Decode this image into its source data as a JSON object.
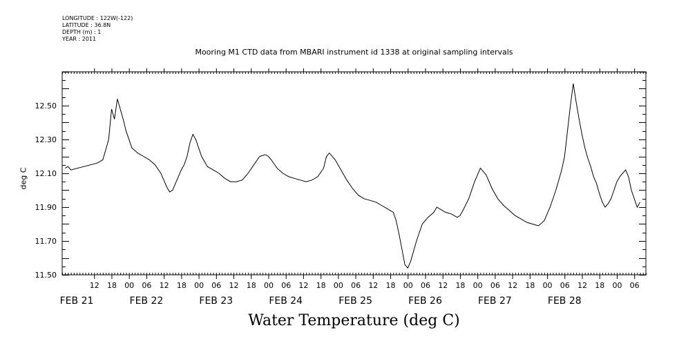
{
  "header": {
    "longitude": "LONGITUDE : 122W(-122)",
    "latitude": "LATITUDE : 36.8N",
    "depth": "DEPTH (m) : 1",
    "year": "YEAR : 2011"
  },
  "chart_data": {
    "type": "line",
    "title": "Mooring M1 CTD data from MBARI instrument id 1338 at original sampling intervals",
    "xlabel": "Water Temperature (deg C)",
    "ylabel": "deg C",
    "ylim": [
      11.5,
      12.7
    ],
    "yticks": [
      11.5,
      11.7,
      11.9,
      12.1,
      12.3,
      12.5
    ],
    "ytick_labels": [
      "11.50",
      "11.70",
      "11.90",
      "12.10",
      "12.30",
      "12.50"
    ],
    "xlim_hours": [
      0,
      201
    ],
    "hour_ticks": [
      {
        "h": 11,
        "label": "12"
      },
      {
        "h": 17,
        "label": "18"
      },
      {
        "h": 23,
        "label": "00"
      },
      {
        "h": 29,
        "label": "06"
      },
      {
        "h": 35,
        "label": "12"
      },
      {
        "h": 41,
        "label": "18"
      },
      {
        "h": 47,
        "label": "00"
      },
      {
        "h": 53,
        "label": "06"
      },
      {
        "h": 59,
        "label": "12"
      },
      {
        "h": 65,
        "label": "18"
      },
      {
        "h": 71,
        "label": "00"
      },
      {
        "h": 77,
        "label": "06"
      },
      {
        "h": 83,
        "label": "12"
      },
      {
        "h": 89,
        "label": "18"
      },
      {
        "h": 95,
        "label": "00"
      },
      {
        "h": 101,
        "label": "06"
      },
      {
        "h": 107,
        "label": "12"
      },
      {
        "h": 113,
        "label": "18"
      },
      {
        "h": 119,
        "label": "00"
      },
      {
        "h": 125,
        "label": "06"
      },
      {
        "h": 131,
        "label": "12"
      },
      {
        "h": 137,
        "label": "18"
      },
      {
        "h": 143,
        "label": "00"
      },
      {
        "h": 149,
        "label": "06"
      },
      {
        "h": 155,
        "label": "12"
      },
      {
        "h": 161,
        "label": "18"
      },
      {
        "h": 167,
        "label": "00"
      },
      {
        "h": 173,
        "label": "06"
      },
      {
        "h": 179,
        "label": "12"
      },
      {
        "h": 185,
        "label": "18"
      },
      {
        "h": 191,
        "label": "00"
      },
      {
        "h": 197,
        "label": "06"
      }
    ],
    "day_labels": [
      {
        "h": 5,
        "label": "FEB 21"
      },
      {
        "h": 29,
        "label": "FEB 22"
      },
      {
        "h": 53,
        "label": "FEB 23"
      },
      {
        "h": 77,
        "label": "FEB 24"
      },
      {
        "h": 101,
        "label": "FEB 25"
      },
      {
        "h": 125,
        "label": "FEB 26"
      },
      {
        "h": 149,
        "label": "FEB 27"
      },
      {
        "h": 173,
        "label": "FEB 28"
      }
    ],
    "x": [
      1,
      2,
      3,
      12,
      14,
      16,
      17,
      18,
      19,
      20,
      21,
      22,
      24,
      26,
      28,
      30,
      32,
      34,
      35,
      36,
      37,
      38,
      39,
      40,
      41,
      42,
      43,
      44,
      45,
      46,
      47,
      48,
      50,
      52,
      54,
      56,
      58,
      60,
      62,
      64,
      66,
      68,
      70,
      71,
      72,
      74,
      76,
      78,
      80,
      82,
      84,
      86,
      88,
      90,
      91,
      92,
      94,
      96,
      98,
      100,
      102,
      104,
      106,
      108,
      110,
      112,
      114,
      115,
      116,
      117,
      118,
      119,
      120,
      122,
      124,
      126,
      128,
      129,
      130,
      132,
      134,
      136,
      137,
      138,
      140,
      142,
      144,
      146,
      148,
      150,
      152,
      154,
      156,
      158,
      160,
      162,
      164,
      166,
      168,
      170,
      172,
      173,
      174,
      175,
      176,
      177,
      178,
      179,
      180,
      181,
      182,
      183,
      184,
      185,
      186,
      187,
      188,
      189,
      190,
      191,
      192,
      193,
      194,
      195,
      196,
      197,
      198,
      199
    ],
    "values": [
      12.13,
      12.14,
      12.12,
      12.16,
      12.18,
      12.3,
      12.48,
      12.42,
      12.54,
      12.48,
      12.42,
      12.35,
      12.25,
      12.22,
      12.2,
      12.18,
      12.15,
      12.1,
      12.06,
      12.02,
      11.99,
      12.0,
      12.04,
      12.08,
      12.12,
      12.15,
      12.2,
      12.28,
      12.33,
      12.3,
      12.25,
      12.2,
      12.14,
      12.12,
      12.1,
      12.07,
      12.05,
      12.05,
      12.06,
      12.1,
      12.15,
      12.2,
      12.21,
      12.2,
      12.18,
      12.13,
      12.1,
      12.08,
      12.07,
      12.06,
      12.05,
      12.06,
      12.08,
      12.13,
      12.2,
      12.22,
      12.18,
      12.12,
      12.06,
      12.01,
      11.97,
      11.95,
      11.94,
      11.93,
      11.91,
      11.89,
      11.87,
      11.82,
      11.74,
      11.65,
      11.56,
      11.54,
      11.58,
      11.7,
      11.8,
      11.84,
      11.87,
      11.9,
      11.89,
      11.87,
      11.86,
      11.84,
      11.85,
      11.88,
      11.95,
      12.05,
      12.13,
      12.09,
      12.01,
      11.95,
      11.91,
      11.88,
      11.85,
      11.83,
      11.81,
      11.8,
      11.79,
      11.82,
      11.9,
      12.0,
      12.12,
      12.2,
      12.35,
      12.5,
      12.63,
      12.52,
      12.42,
      12.33,
      12.25,
      12.19,
      12.14,
      12.08,
      12.04,
      11.98,
      11.93,
      11.9,
      11.92,
      11.95,
      12.0,
      12.05,
      12.08,
      12.1,
      12.12,
      12.08,
      12.0,
      11.95,
      11.9,
      11.93
    ]
  }
}
